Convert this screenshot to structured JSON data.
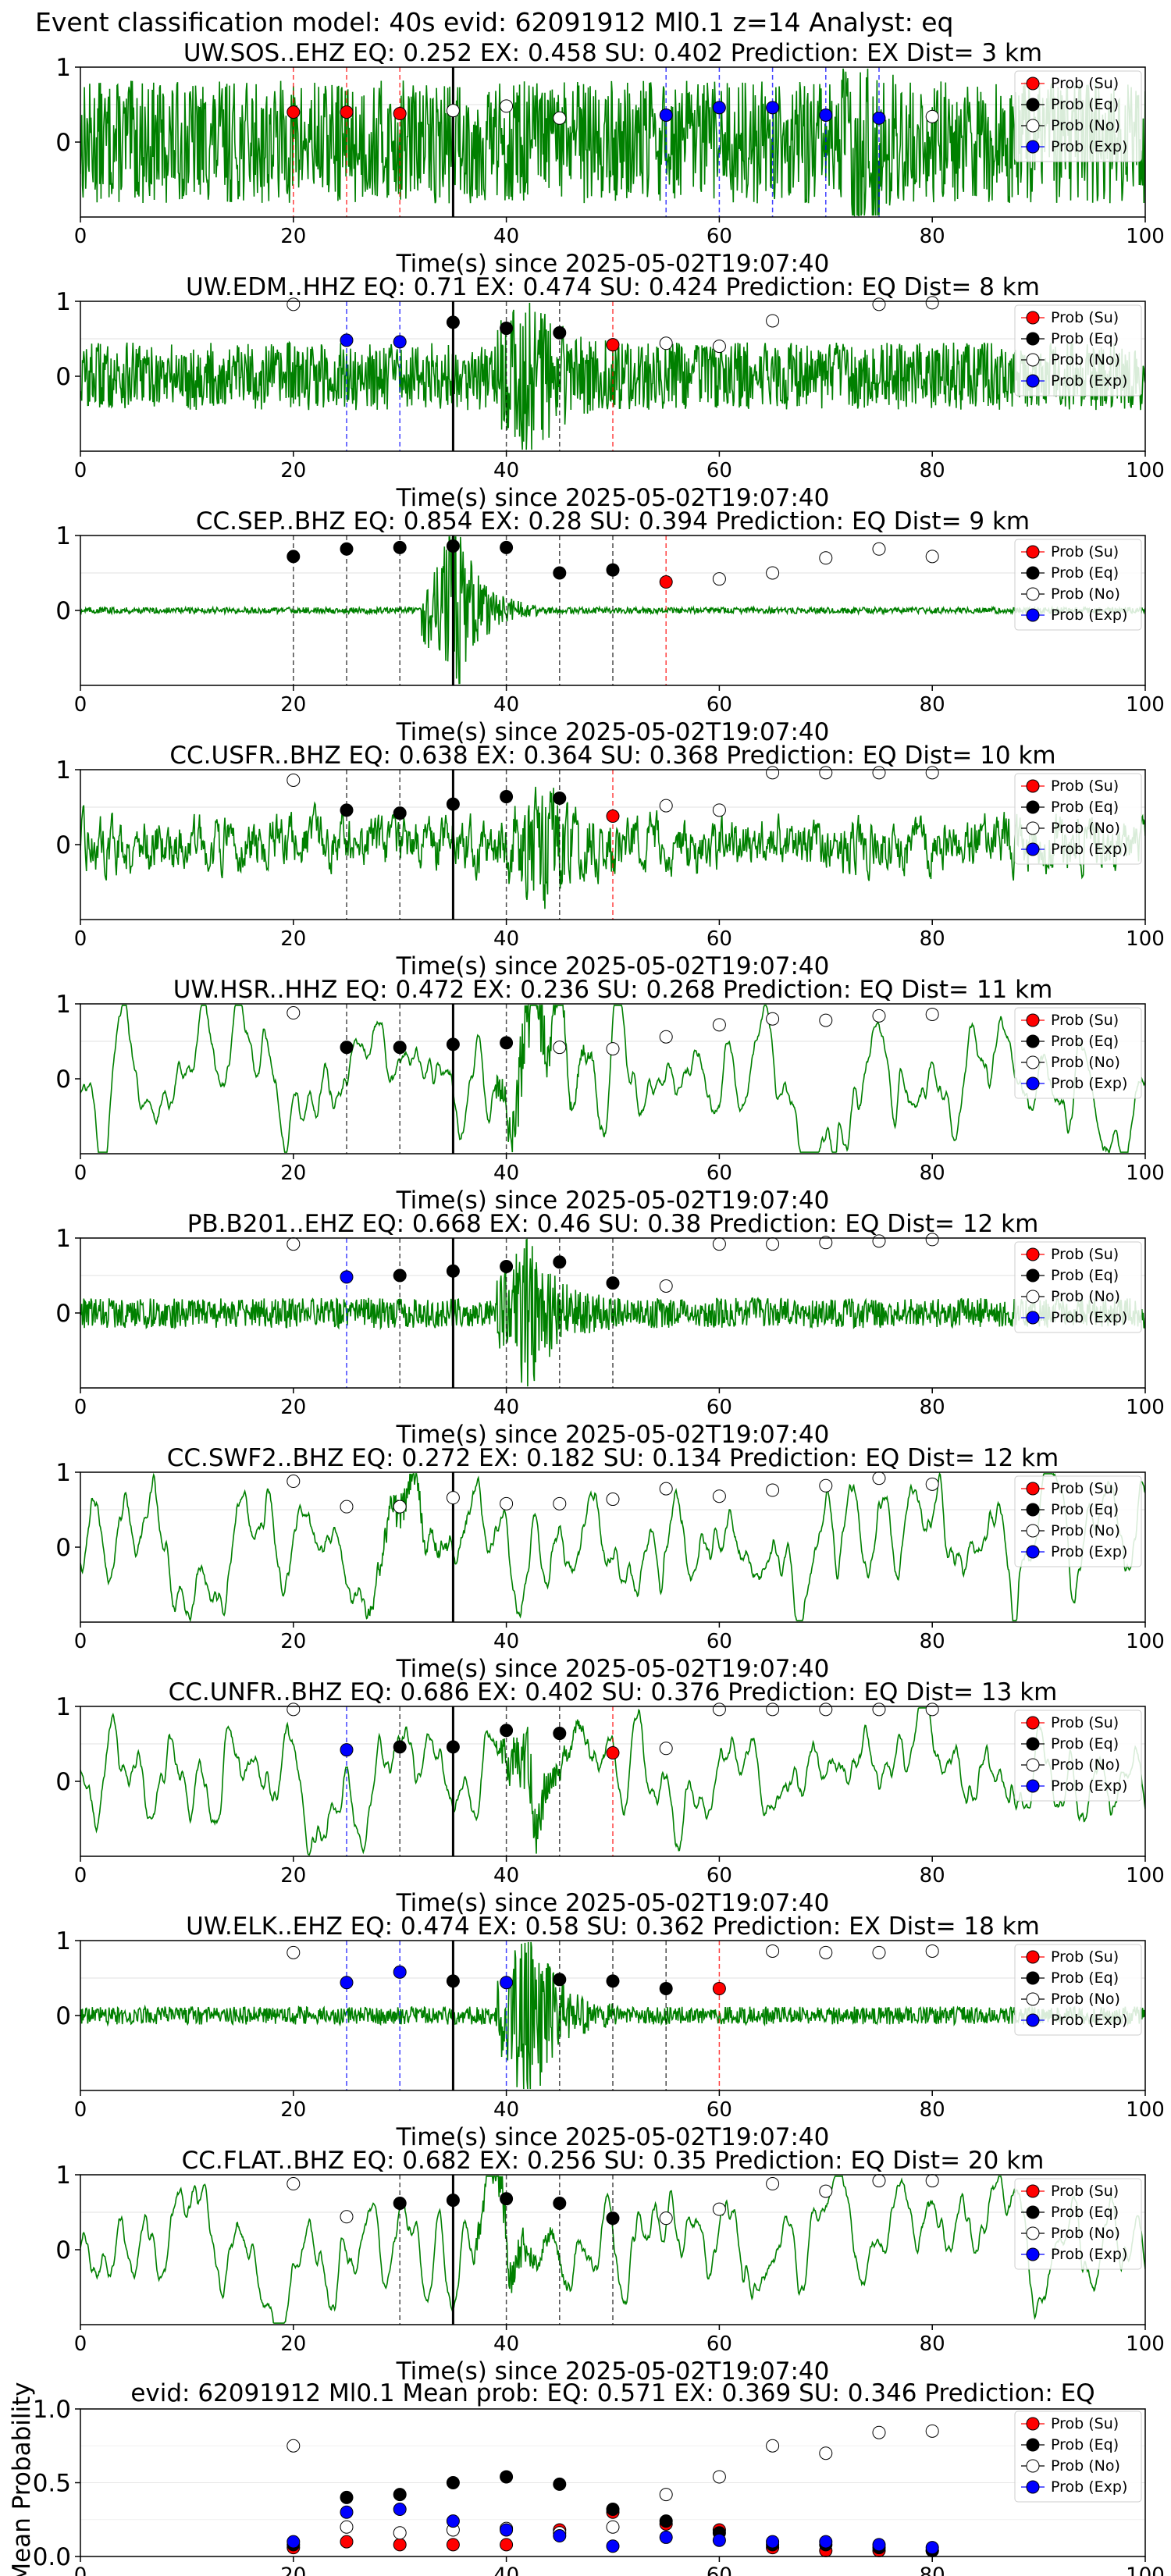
{
  "figure_title": "Event classification model: 40s evid: 62091912 Ml0.1 z=14 Analyst: eq",
  "x_axis_label": "Time(s) since 2025-05-02T19:07:40",
  "x_ticks": [
    0,
    20,
    40,
    60,
    80,
    100
  ],
  "legend": [
    {
      "label": "Prob (Su)",
      "color": "#ff0000"
    },
    {
      "label": "Prob (Eq)",
      "color": "#000000"
    },
    {
      "label": "Prob (No)",
      "color": "#ffffff"
    },
    {
      "label": "Prob (Exp)",
      "color": "#0000ff"
    }
  ],
  "colors": {
    "waveform": "#008000",
    "su": "#ff0000",
    "eq": "#000000",
    "no": "#ffffff",
    "exp": "#0000ff"
  },
  "chart_data": {
    "type": "scatter",
    "x": [
      20,
      25,
      30,
      35,
      40,
      45,
      50,
      55,
      60,
      65,
      70,
      75,
      80
    ],
    "origin_marker_x": 35,
    "xlim": [
      0,
      100
    ],
    "station_ylim": [
      -1,
      1
    ],
    "station_yticks": [
      0,
      1
    ],
    "panels": [
      {
        "station": "UW.SOS..EHZ",
        "eq": "0.252",
        "ex": "0.458",
        "su": "0.402",
        "prediction": "EX",
        "dist": "3 km",
        "amp": 0.5,
        "noise": 0.82,
        "style": "hf",
        "burst_at": 73,
        "burst_amp": 0.4,
        "points": [
          [
            20,
            "su",
            0.4
          ],
          [
            25,
            "su",
            0.4
          ],
          [
            30,
            "su",
            0.38
          ],
          [
            35,
            "no",
            0.42
          ],
          [
            40,
            "no",
            0.48
          ],
          [
            45,
            "no",
            0.32
          ],
          [
            55,
            "exp",
            0.36
          ],
          [
            60,
            "exp",
            0.46
          ],
          [
            65,
            "exp",
            0.46
          ],
          [
            70,
            "exp",
            0.36
          ],
          [
            75,
            "exp",
            0.32
          ],
          [
            80,
            "no",
            0.34
          ]
        ],
        "vlines": [
          [
            20,
            "su"
          ],
          [
            25,
            "su"
          ],
          [
            30,
            "su"
          ],
          [
            55,
            "exp"
          ],
          [
            60,
            "exp"
          ],
          [
            65,
            "exp"
          ],
          [
            70,
            "exp"
          ],
          [
            75,
            "exp"
          ]
        ]
      },
      {
        "station": "UW.EDM..HHZ",
        "eq": "0.71",
        "ex": "0.474",
        "su": "0.424",
        "prediction": "EQ",
        "dist": "8 km",
        "amp": 0.3,
        "noise": 0.45,
        "style": "hf",
        "burst_at": 42,
        "burst_amp": 0.7,
        "points": [
          [
            20,
            "no",
            0.96
          ],
          [
            25,
            "exp",
            0.48
          ],
          [
            30,
            "exp",
            0.46
          ],
          [
            35,
            "eq",
            0.72
          ],
          [
            40,
            "eq",
            0.64
          ],
          [
            45,
            "eq",
            0.58
          ],
          [
            50,
            "su",
            0.42
          ],
          [
            55,
            "no",
            0.44
          ],
          [
            60,
            "no",
            0.4
          ],
          [
            65,
            "no",
            0.74
          ],
          [
            75,
            "no",
            0.96
          ],
          [
            80,
            "no",
            0.98
          ]
        ],
        "vlines": [
          [
            25,
            "exp"
          ],
          [
            30,
            "exp"
          ],
          [
            40,
            "eq"
          ],
          [
            45,
            "eq"
          ],
          [
            50,
            "su"
          ]
        ]
      },
      {
        "station": "CC.SEP..BHZ",
        "eq": "0.854",
        "ex": "0.28",
        "su": "0.394",
        "prediction": "EQ",
        "dist": "9 km",
        "amp": 0.02,
        "noise": 0.04,
        "style": "hf",
        "burst_at": 35,
        "burst_amp": 1.0,
        "points": [
          [
            20,
            "eq",
            0.72
          ],
          [
            25,
            "eq",
            0.82
          ],
          [
            30,
            "eq",
            0.84
          ],
          [
            35,
            "eq",
            0.86
          ],
          [
            40,
            "eq",
            0.84
          ],
          [
            45,
            "eq",
            0.5
          ],
          [
            50,
            "eq",
            0.54
          ],
          [
            55,
            "su",
            0.38
          ],
          [
            60,
            "no",
            0.42
          ],
          [
            65,
            "no",
            0.5
          ],
          [
            70,
            "no",
            0.7
          ],
          [
            75,
            "no",
            0.82
          ],
          [
            80,
            "no",
            0.72
          ]
        ],
        "vlines": [
          [
            20,
            "eq"
          ],
          [
            25,
            "eq"
          ],
          [
            30,
            "eq"
          ],
          [
            40,
            "eq"
          ],
          [
            45,
            "eq"
          ],
          [
            50,
            "eq"
          ],
          [
            55,
            "su"
          ]
        ]
      },
      {
        "station": "CC.USFR..BHZ",
        "eq": "0.638",
        "ex": "0.364",
        "su": "0.368",
        "prediction": "EQ",
        "dist": "10 km",
        "amp": 0.45,
        "noise": 0.2,
        "style": "mf",
        "burst_at": 43,
        "burst_amp": 0.5,
        "points": [
          [
            20,
            "no",
            0.86
          ],
          [
            25,
            "eq",
            0.46
          ],
          [
            30,
            "eq",
            0.42
          ],
          [
            35,
            "eq",
            0.54
          ],
          [
            40,
            "eq",
            0.64
          ],
          [
            45,
            "eq",
            0.62
          ],
          [
            50,
            "su",
            0.38
          ],
          [
            55,
            "no",
            0.52
          ],
          [
            60,
            "no",
            0.46
          ],
          [
            65,
            "no",
            0.96
          ],
          [
            70,
            "no",
            0.96
          ],
          [
            75,
            "no",
            0.96
          ],
          [
            80,
            "no",
            0.96
          ]
        ],
        "vlines": [
          [
            25,
            "eq"
          ],
          [
            30,
            "eq"
          ],
          [
            40,
            "eq"
          ],
          [
            45,
            "eq"
          ],
          [
            50,
            "su"
          ]
        ]
      },
      {
        "station": "UW.HSR..HHZ",
        "eq": "0.472",
        "ex": "0.236",
        "su": "0.268",
        "prediction": "EQ",
        "dist": "11 km",
        "amp": 0.5,
        "noise": 0.1,
        "style": "lf",
        "burst_at": 42,
        "burst_amp": 0.5,
        "points": [
          [
            20,
            "no",
            0.88
          ],
          [
            25,
            "eq",
            0.42
          ],
          [
            30,
            "eq",
            0.42
          ],
          [
            35,
            "eq",
            0.46
          ],
          [
            40,
            "eq",
            0.48
          ],
          [
            45,
            "no",
            0.42
          ],
          [
            50,
            "no",
            0.4
          ],
          [
            55,
            "no",
            0.56
          ],
          [
            60,
            "no",
            0.72
          ],
          [
            65,
            "no",
            0.8
          ],
          [
            70,
            "no",
            0.78
          ],
          [
            75,
            "no",
            0.84
          ],
          [
            80,
            "no",
            0.86
          ]
        ],
        "vlines": [
          [
            25,
            "eq"
          ],
          [
            30,
            "eq"
          ],
          [
            40,
            "eq"
          ]
        ]
      },
      {
        "station": "PB.B201..EHZ",
        "eq": "0.668",
        "ex": "0.46",
        "su": "0.38",
        "prediction": "EQ",
        "dist": "12 km",
        "amp": 0.1,
        "noise": 0.2,
        "style": "hf",
        "burst_at": 42,
        "burst_amp": 0.7,
        "points": [
          [
            20,
            "no",
            0.92
          ],
          [
            25,
            "exp",
            0.48
          ],
          [
            30,
            "eq",
            0.5
          ],
          [
            35,
            "eq",
            0.56
          ],
          [
            40,
            "eq",
            0.62
          ],
          [
            45,
            "eq",
            0.68
          ],
          [
            50,
            "eq",
            0.4
          ],
          [
            55,
            "no",
            0.36
          ],
          [
            60,
            "no",
            0.92
          ],
          [
            65,
            "no",
            0.92
          ],
          [
            70,
            "no",
            0.94
          ],
          [
            75,
            "no",
            0.96
          ],
          [
            80,
            "no",
            0.98
          ]
        ],
        "vlines": [
          [
            25,
            "exp"
          ],
          [
            30,
            "eq"
          ],
          [
            40,
            "eq"
          ],
          [
            45,
            "eq"
          ],
          [
            50,
            "eq"
          ]
        ]
      },
      {
        "station": "CC.SWF2..BHZ",
        "eq": "0.272",
        "ex": "0.182",
        "su": "0.134",
        "prediction": "EQ",
        "dist": "12 km",
        "amp": 0.55,
        "noise": 0.1,
        "style": "lf",
        "burst_at": 30,
        "burst_amp": 0.2,
        "points": [
          [
            20,
            "no",
            0.88
          ],
          [
            25,
            "no",
            0.54
          ],
          [
            30,
            "no",
            0.54
          ],
          [
            35,
            "no",
            0.66
          ],
          [
            40,
            "no",
            0.58
          ],
          [
            45,
            "no",
            0.58
          ],
          [
            50,
            "no",
            0.64
          ],
          [
            55,
            "no",
            0.78
          ],
          [
            60,
            "no",
            0.68
          ],
          [
            65,
            "no",
            0.76
          ],
          [
            70,
            "no",
            0.82
          ],
          [
            75,
            "no",
            0.92
          ],
          [
            80,
            "no",
            0.84
          ]
        ],
        "vlines": []
      },
      {
        "station": "CC.UNFR..BHZ",
        "eq": "0.686",
        "ex": "0.402",
        "su": "0.376",
        "prediction": "EQ",
        "dist": "13 km",
        "amp": 0.5,
        "noise": 0.12,
        "style": "lf",
        "burst_at": 42,
        "burst_amp": 0.35,
        "points": [
          [
            20,
            "no",
            0.96
          ],
          [
            25,
            "exp",
            0.42
          ],
          [
            30,
            "eq",
            0.46
          ],
          [
            35,
            "eq",
            0.46
          ],
          [
            40,
            "eq",
            0.68
          ],
          [
            45,
            "eq",
            0.64
          ],
          [
            50,
            "su",
            0.38
          ],
          [
            55,
            "no",
            0.44
          ],
          [
            60,
            "no",
            0.96
          ],
          [
            65,
            "no",
            0.96
          ],
          [
            70,
            "no",
            0.96
          ],
          [
            75,
            "no",
            0.96
          ],
          [
            80,
            "no",
            0.96
          ]
        ],
        "vlines": [
          [
            25,
            "exp"
          ],
          [
            30,
            "eq"
          ],
          [
            40,
            "eq"
          ],
          [
            45,
            "eq"
          ],
          [
            50,
            "su"
          ]
        ]
      },
      {
        "station": "UW.ELK..EHZ",
        "eq": "0.474",
        "ex": "0.58",
        "su": "0.362",
        "prediction": "EX",
        "dist": "18 km",
        "amp": 0.06,
        "noise": 0.12,
        "style": "hf",
        "burst_at": 42,
        "burst_amp": 1.0,
        "points": [
          [
            20,
            "no",
            0.84
          ],
          [
            25,
            "exp",
            0.44
          ],
          [
            30,
            "exp",
            0.58
          ],
          [
            35,
            "eq",
            0.46
          ],
          [
            40,
            "exp",
            0.44
          ],
          [
            45,
            "eq",
            0.48
          ],
          [
            50,
            "eq",
            0.46
          ],
          [
            55,
            "eq",
            0.36
          ],
          [
            60,
            "su",
            0.36
          ],
          [
            65,
            "no",
            0.86
          ],
          [
            70,
            "no",
            0.84
          ],
          [
            75,
            "no",
            0.84
          ],
          [
            80,
            "no",
            0.86
          ]
        ],
        "vlines": [
          [
            25,
            "exp"
          ],
          [
            30,
            "exp"
          ],
          [
            40,
            "exp"
          ],
          [
            45,
            "eq"
          ],
          [
            50,
            "eq"
          ],
          [
            55,
            "eq"
          ],
          [
            60,
            "su"
          ]
        ]
      },
      {
        "station": "CC.FLAT..BHZ",
        "eq": "0.682",
        "ex": "0.256",
        "su": "0.35",
        "prediction": "EQ",
        "dist": "20 km",
        "amp": 0.5,
        "noise": 0.08,
        "style": "lf",
        "burst_at": 40,
        "burst_amp": 0.3,
        "points": [
          [
            20,
            "no",
            0.88
          ],
          [
            25,
            "no",
            0.44
          ],
          [
            30,
            "eq",
            0.62
          ],
          [
            35,
            "eq",
            0.66
          ],
          [
            40,
            "eq",
            0.68
          ],
          [
            45,
            "eq",
            0.62
          ],
          [
            50,
            "eq",
            0.42
          ],
          [
            55,
            "no",
            0.42
          ],
          [
            60,
            "no",
            0.54
          ],
          [
            65,
            "no",
            0.88
          ],
          [
            70,
            "no",
            0.78
          ],
          [
            75,
            "no",
            0.92
          ],
          [
            80,
            "no",
            0.92
          ]
        ],
        "vlines": [
          [
            30,
            "eq"
          ],
          [
            40,
            "eq"
          ],
          [
            45,
            "eq"
          ],
          [
            50,
            "eq"
          ]
        ]
      }
    ],
    "summary": {
      "title": "evid: 62091912   Ml0.1   Mean prob:   EQ: 0.571  EX: 0.369  SU: 0.346   Prediction: EQ",
      "ylabel": "Mean Probability",
      "ylim": [
        0,
        1
      ],
      "yticks": [
        0.0,
        0.5,
        1.0
      ],
      "ytick_labels": [
        "0.0",
        "0.5",
        "1.0"
      ],
      "series": {
        "su": [
          0.06,
          0.1,
          0.08,
          0.08,
          0.08,
          0.18,
          0.3,
          0.22,
          0.18,
          0.06,
          0.04,
          0.04,
          0.04
        ],
        "eq": [
          0.08,
          0.4,
          0.42,
          0.5,
          0.54,
          0.49,
          0.32,
          0.24,
          0.16,
          0.08,
          0.08,
          0.06,
          0.04
        ],
        "no": [
          0.75,
          0.2,
          0.16,
          0.18,
          0.19,
          0.16,
          0.2,
          0.42,
          0.54,
          0.75,
          0.7,
          0.84,
          0.85
        ],
        "exp": [
          0.1,
          0.3,
          0.32,
          0.24,
          0.18,
          0.14,
          0.07,
          0.13,
          0.11,
          0.1,
          0.1,
          0.08,
          0.06
        ]
      }
    }
  }
}
